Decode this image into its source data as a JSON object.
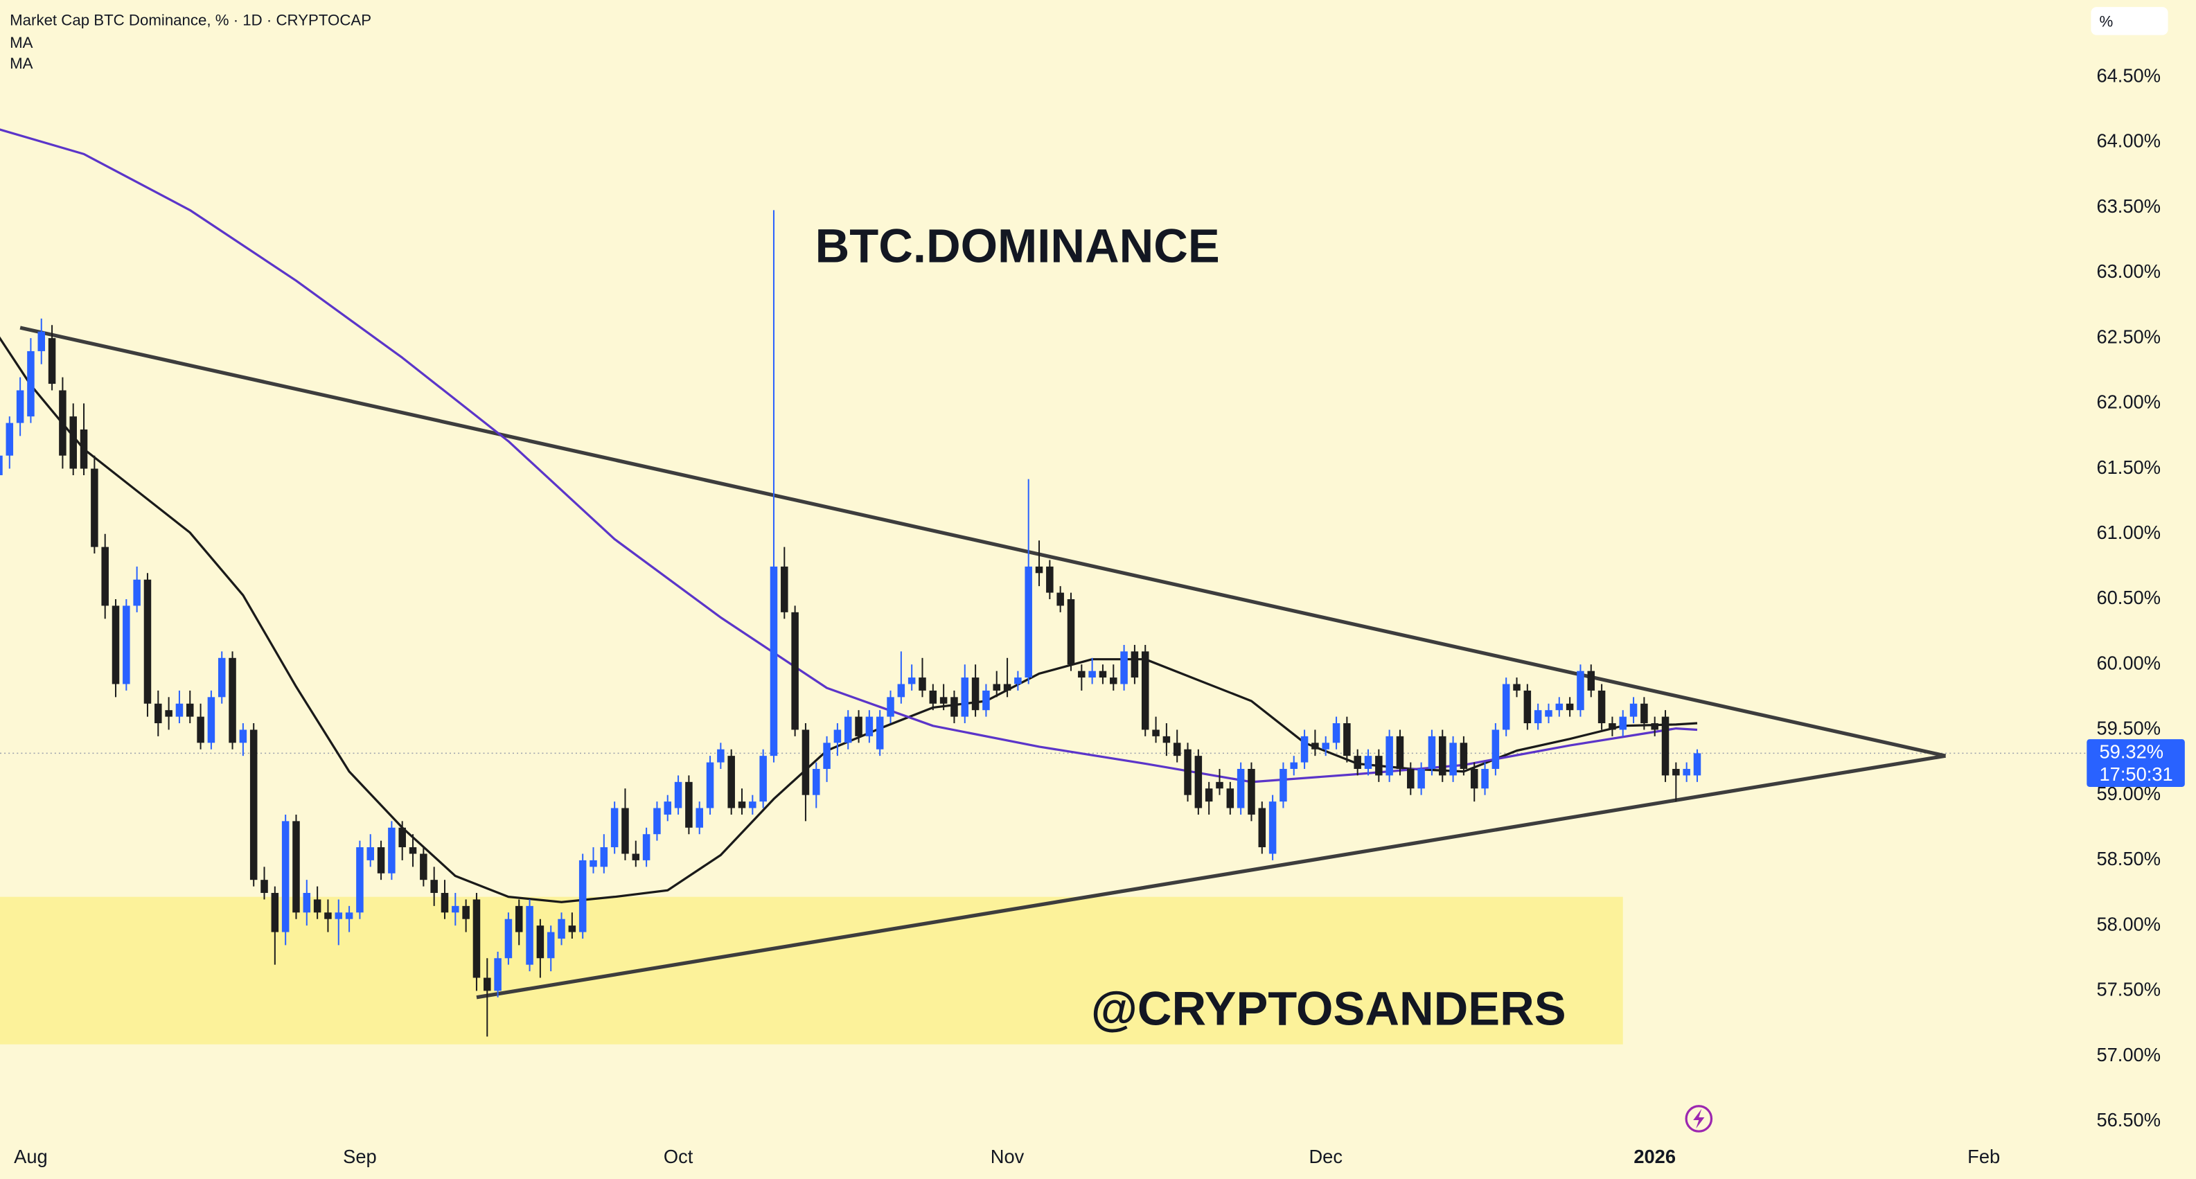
{
  "chart_data": {
    "type": "candlestick",
    "title": "Market Cap BTC Dominance, % · 1D · CRYPTOCAP",
    "unit_label": "%",
    "annotations": [
      "BTC.DOMINANCE",
      "@CRYPTOSANDERS"
    ],
    "up_color": "#2962ff",
    "down_color": "#1e1e1e",
    "background": "#fdf8d5",
    "x": [
      -3,
      -2,
      -1,
      0,
      1,
      2,
      3,
      4,
      5,
      6,
      7,
      8,
      9,
      10,
      11,
      12,
      13,
      14,
      15,
      16,
      17,
      18,
      19,
      20,
      21,
      22,
      23,
      24,
      25,
      26,
      27,
      28,
      29,
      30,
      31,
      32,
      33,
      34,
      35,
      36,
      37,
      38,
      39,
      40,
      41,
      42,
      43,
      44,
      45,
      46,
      47,
      48,
      49,
      50,
      51,
      52,
      53,
      54,
      55,
      56,
      57,
      58,
      59,
      60,
      61,
      62,
      63,
      64,
      65,
      66,
      67,
      68,
      69,
      70,
      71,
      72,
      73,
      74,
      75,
      76,
      77,
      78,
      79,
      80,
      81,
      82,
      83,
      84,
      85,
      86,
      87,
      88,
      89,
      90,
      91,
      92,
      93,
      94,
      95,
      96,
      97,
      98,
      99,
      100,
      101,
      102,
      103,
      104,
      105,
      106,
      107,
      108,
      109,
      110,
      111,
      112,
      113,
      114,
      115,
      116,
      117,
      118,
      119,
      120,
      121,
      122,
      123,
      124,
      125,
      126,
      127,
      128,
      129,
      130,
      131,
      132,
      133,
      134,
      135,
      136,
      137,
      138,
      139,
      140,
      141,
      142,
      143,
      144,
      145,
      146,
      147,
      148,
      149,
      150,
      151,
      152,
      153,
      154,
      155,
      156,
      157
    ],
    "open": [
      61.45,
      61.6,
      61.85,
      61.9,
      62.4,
      62.5,
      62.1,
      61.9,
      61.8,
      61.5,
      60.9,
      60.45,
      59.85,
      60.45,
      60.65,
      59.7,
      59.65,
      59.6,
      59.7,
      59.6,
      59.4,
      59.75,
      60.05,
      59.4,
      59.5,
      58.35,
      58.25,
      57.95,
      58.8,
      58.1,
      58.2,
      58.1,
      58.05,
      58.05,
      58.1,
      58.5,
      58.6,
      58.4,
      58.75,
      58.6,
      58.55,
      58.35,
      58.25,
      58.1,
      58.15,
      58.2,
      57.6,
      57.5,
      57.75,
      58.15,
      57.7,
      58.0,
      57.75,
      57.9,
      58.0,
      57.95,
      58.45,
      58.45,
      58.6,
      58.9,
      58.55,
      58.5,
      58.7,
      58.85,
      58.9,
      59.1,
      58.75,
      58.9,
      59.25,
      59.3,
      58.95,
      58.9,
      58.95,
      59.3,
      60.75,
      60.4,
      59.5,
      59.0,
      59.2,
      59.4,
      59.4,
      59.6,
      59.45,
      59.35,
      59.6,
      59.75,
      59.85,
      59.9,
      59.8,
      59.75,
      59.75,
      59.6,
      59.9,
      59.65,
      59.85,
      59.85,
      59.85,
      59.9,
      60.75,
      60.75,
      60.55,
      60.5,
      59.95,
      59.9,
      59.95,
      59.9,
      59.85,
      60.1,
      60.1,
      59.5,
      59.45,
      59.4,
      59.35,
      59.3,
      59.05,
      59.1,
      59.05,
      58.9,
      59.2,
      58.9,
      58.55,
      58.95,
      59.2,
      59.25,
      59.4,
      59.35,
      59.4,
      59.55,
      59.3,
      59.2,
      59.3,
      59.15,
      59.45,
      59.2,
      59.05,
      59.2,
      59.45,
      59.15,
      59.4,
      59.2,
      59.05,
      59.2,
      59.5,
      59.85,
      59.8,
      59.55,
      59.6,
      59.65,
      59.7,
      59.65,
      59.95,
      59.8,
      59.55,
      59.5,
      59.6,
      59.7,
      59.55,
      59.6,
      59.2,
      59.15,
      59.15
    ],
    "high": [
      61.7,
      61.9,
      62.2,
      62.5,
      62.65,
      62.6,
      62.2,
      62.0,
      62.0,
      61.6,
      61.0,
      60.5,
      60.5,
      60.75,
      60.7,
      59.8,
      59.75,
      59.8,
      59.8,
      59.7,
      59.8,
      60.1,
      60.1,
      59.55,
      59.55,
      58.45,
      58.3,
      58.85,
      58.85,
      58.35,
      58.3,
      58.2,
      58.2,
      58.15,
      58.65,
      58.7,
      58.65,
      58.8,
      58.8,
      58.7,
      58.6,
      58.45,
      58.35,
      58.25,
      58.2,
      58.25,
      57.75,
      57.8,
      58.1,
      58.2,
      58.2,
      58.05,
      58.0,
      58.1,
      58.1,
      58.55,
      58.6,
      58.7,
      58.95,
      59.05,
      58.65,
      58.75,
      58.95,
      59.0,
      59.15,
      59.15,
      58.95,
      59.3,
      59.4,
      59.35,
      59.05,
      59.0,
      59.35,
      63.48,
      60.9,
      60.45,
      59.55,
      59.25,
      59.45,
      59.55,
      59.65,
      59.65,
      59.65,
      59.65,
      59.8,
      60.1,
      60.0,
      60.05,
      59.85,
      59.85,
      59.8,
      60.0,
      60.0,
      59.85,
      59.95,
      60.05,
      59.95,
      61.42,
      60.95,
      60.8,
      60.6,
      60.55,
      60.0,
      60.05,
      60.0,
      60.0,
      60.15,
      60.15,
      60.15,
      59.6,
      59.55,
      59.5,
      59.4,
      59.35,
      59.1,
      59.2,
      59.1,
      59.25,
      59.25,
      58.95,
      59.0,
      59.25,
      59.3,
      59.5,
      59.5,
      59.45,
      59.6,
      59.6,
      59.35,
      59.35,
      59.35,
      59.5,
      59.5,
      59.25,
      59.25,
      59.5,
      59.5,
      59.45,
      59.45,
      59.25,
      59.25,
      59.55,
      59.9,
      59.9,
      59.85,
      59.7,
      59.7,
      59.75,
      59.75,
      60.0,
      60.0,
      59.85,
      59.6,
      59.65,
      59.75,
      59.75,
      59.6,
      59.65,
      59.25,
      59.25,
      59.35
    ],
    "low": [
      61.35,
      61.5,
      61.75,
      61.85,
      62.3,
      62.1,
      61.5,
      61.45,
      61.45,
      60.85,
      60.35,
      59.75,
      59.8,
      60.4,
      59.6,
      59.45,
      59.5,
      59.55,
      59.55,
      59.35,
      59.35,
      59.7,
      59.35,
      59.3,
      58.3,
      58.2,
      57.7,
      57.85,
      58.05,
      58.0,
      58.05,
      57.95,
      57.85,
      57.95,
      58.05,
      58.45,
      58.35,
      58.35,
      58.5,
      58.45,
      58.3,
      58.15,
      58.05,
      58.0,
      57.95,
      57.5,
      57.15,
      57.45,
      57.7,
      57.85,
      57.65,
      57.6,
      57.65,
      57.85,
      57.9,
      57.9,
      58.4,
      58.4,
      58.55,
      58.5,
      58.45,
      58.45,
      58.65,
      58.8,
      58.85,
      58.7,
      58.7,
      58.85,
      59.2,
      58.85,
      58.85,
      58.85,
      58.9,
      59.25,
      60.35,
      59.45,
      58.8,
      58.9,
      59.1,
      59.3,
      59.35,
      59.4,
      59.4,
      59.3,
      59.55,
      59.7,
      59.8,
      59.75,
      59.65,
      59.65,
      59.55,
      59.55,
      59.6,
      59.6,
      59.75,
      59.75,
      59.8,
      59.85,
      60.6,
      60.5,
      60.4,
      59.95,
      59.8,
      59.85,
      59.85,
      59.8,
      59.8,
      59.85,
      59.45,
      59.4,
      59.3,
      59.25,
      58.95,
      58.85,
      58.85,
      59.0,
      58.85,
      58.85,
      58.8,
      58.55,
      58.5,
      58.9,
      59.15,
      59.2,
      59.3,
      59.3,
      59.35,
      59.25,
      59.15,
      59.15,
      59.1,
      59.1,
      59.15,
      59.0,
      59.0,
      59.15,
      59.1,
      59.1,
      59.15,
      58.95,
      59.0,
      59.15,
      59.45,
      59.75,
      59.5,
      59.5,
      59.55,
      59.6,
      59.6,
      59.6,
      59.75,
      59.5,
      59.45,
      59.45,
      59.55,
      59.5,
      59.45,
      59.1,
      58.95,
      59.1,
      59.1
    ],
    "close": [
      61.6,
      61.85,
      62.1,
      62.4,
      62.55,
      62.15,
      61.6,
      61.5,
      61.5,
      60.9,
      60.45,
      59.85,
      60.45,
      60.65,
      59.7,
      59.55,
      59.6,
      59.7,
      59.6,
      59.4,
      59.75,
      60.05,
      59.4,
      59.5,
      58.35,
      58.25,
      57.95,
      58.8,
      58.1,
      58.25,
      58.1,
      58.05,
      58.1,
      58.1,
      58.6,
      58.6,
      58.4,
      58.75,
      58.6,
      58.55,
      58.35,
      58.25,
      58.1,
      58.15,
      58.05,
      57.6,
      57.5,
      57.75,
      58.05,
      57.95,
      58.15,
      57.75,
      57.95,
      58.05,
      57.95,
      58.5,
      58.5,
      58.6,
      58.9,
      58.55,
      58.5,
      58.7,
      58.9,
      58.95,
      59.1,
      58.75,
      58.9,
      59.25,
      59.35,
      58.9,
      58.9,
      58.95,
      59.3,
      60.75,
      60.4,
      59.5,
      59.0,
      59.2,
      59.4,
      59.5,
      59.6,
      59.45,
      59.6,
      59.6,
      59.75,
      59.85,
      59.9,
      59.8,
      59.7,
      59.7,
      59.6,
      59.9,
      59.65,
      59.8,
      59.8,
      59.8,
      59.9,
      60.75,
      60.7,
      60.55,
      60.45,
      60.0,
      59.9,
      59.95,
      59.9,
      59.85,
      60.1,
      59.9,
      59.5,
      59.45,
      59.4,
      59.3,
      59.0,
      58.9,
      58.95,
      59.05,
      58.9,
      59.2,
      58.85,
      58.6,
      58.95,
      59.2,
      59.25,
      59.45,
      59.35,
      59.4,
      59.55,
      59.3,
      59.2,
      59.3,
      59.15,
      59.45,
      59.2,
      59.05,
      59.2,
      59.45,
      59.15,
      59.4,
      59.2,
      59.05,
      59.2,
      59.5,
      59.85,
      59.8,
      59.55,
      59.65,
      59.65,
      59.7,
      59.65,
      59.95,
      59.8,
      59.55,
      59.5,
      59.6,
      59.7,
      59.55,
      59.5,
      59.15,
      59.15,
      59.2,
      59.32
    ],
    "series": [
      {
        "name": "MA",
        "color": "#1a1a1a",
        "x": [
          -3,
          0,
          5,
          10,
          15,
          20,
          25,
          30,
          35,
          40,
          45,
          50,
          55,
          60,
          65,
          70,
          75,
          80,
          85,
          90,
          95,
          100,
          105,
          110,
          115,
          120,
          125,
          130,
          135,
          140,
          145,
          150,
          155,
          157
        ],
        "values": [
          62.51,
          62.14,
          61.65,
          61.33,
          61.01,
          60.53,
          59.83,
          59.18,
          58.75,
          58.38,
          58.22,
          58.18,
          58.22,
          58.27,
          58.54,
          58.97,
          59.34,
          59.51,
          59.67,
          59.72,
          59.93,
          60.04,
          60.04,
          59.88,
          59.72,
          59.4,
          59.24,
          59.2,
          59.18,
          59.34,
          59.43,
          59.53,
          59.54,
          59.55
        ]
      },
      {
        "name": "MA",
        "color": "#5b35c9",
        "x": [
          -3,
          5,
          15,
          25,
          35,
          45,
          55,
          65,
          75,
          85,
          95,
          105,
          115,
          125,
          135,
          145,
          155,
          157
        ],
        "values": [
          64.1,
          63.91,
          63.48,
          62.94,
          62.35,
          61.71,
          60.96,
          60.36,
          59.82,
          59.53,
          59.37,
          59.24,
          59.1,
          59.16,
          59.23,
          59.38,
          59.51,
          59.5
        ]
      }
    ],
    "trendlines": [
      {
        "color": "#3d3d3d",
        "x": [
          -1,
          180.4
        ],
        "values": [
          62.58,
          59.3
        ]
      },
      {
        "color": "#3d3d3d",
        "x": [
          42,
          180.4
        ],
        "values": [
          57.45,
          59.3
        ]
      }
    ],
    "zone": {
      "color": "#fcf29a",
      "x": [
        -3,
        150
      ],
      "values": [
        57.09,
        58.22
      ]
    },
    "last_price": {
      "value": 59.32,
      "label": "59.32%"
    },
    "countdown": "17:50:31",
    "xlim": [
      -2.9,
      193.7
    ],
    "xticks": [
      {
        "value": 0,
        "label": "Aug"
      },
      {
        "value": 31,
        "label": "Sep"
      },
      {
        "value": 61,
        "label": "Oct"
      },
      {
        "value": 92,
        "label": "Nov"
      },
      {
        "value": 122,
        "label": "Dec"
      },
      {
        "value": 153,
        "label": "2026"
      },
      {
        "value": 184,
        "label": "Feb"
      }
    ],
    "ylim": [
      56.37,
      65.09
    ],
    "yticks": [
      {
        "value": 56.5,
        "label": "56.50%"
      },
      {
        "value": 57,
        "label": "57.00%"
      },
      {
        "value": 57.5,
        "label": "57.50%"
      },
      {
        "value": 58,
        "label": "58.00%"
      },
      {
        "value": 58.5,
        "label": "58.50%"
      },
      {
        "value": 59,
        "label": "59.00%"
      },
      {
        "value": 59.5,
        "label": "59.50%"
      },
      {
        "value": 60,
        "label": "60.00%"
      },
      {
        "value": 60.5,
        "label": "60.50%"
      },
      {
        "value": 61,
        "label": "61.00%"
      },
      {
        "value": 61.5,
        "label": "61.50%"
      },
      {
        "value": 62,
        "label": "62.00%"
      },
      {
        "value": 62.5,
        "label": "62.50%"
      },
      {
        "value": 63,
        "label": "63.00%"
      },
      {
        "value": 63.5,
        "label": "63.50%"
      },
      {
        "value": 64,
        "label": "64.00%"
      },
      {
        "value": 64.5,
        "label": "64.50%"
      }
    ],
    "grid": false
  }
}
